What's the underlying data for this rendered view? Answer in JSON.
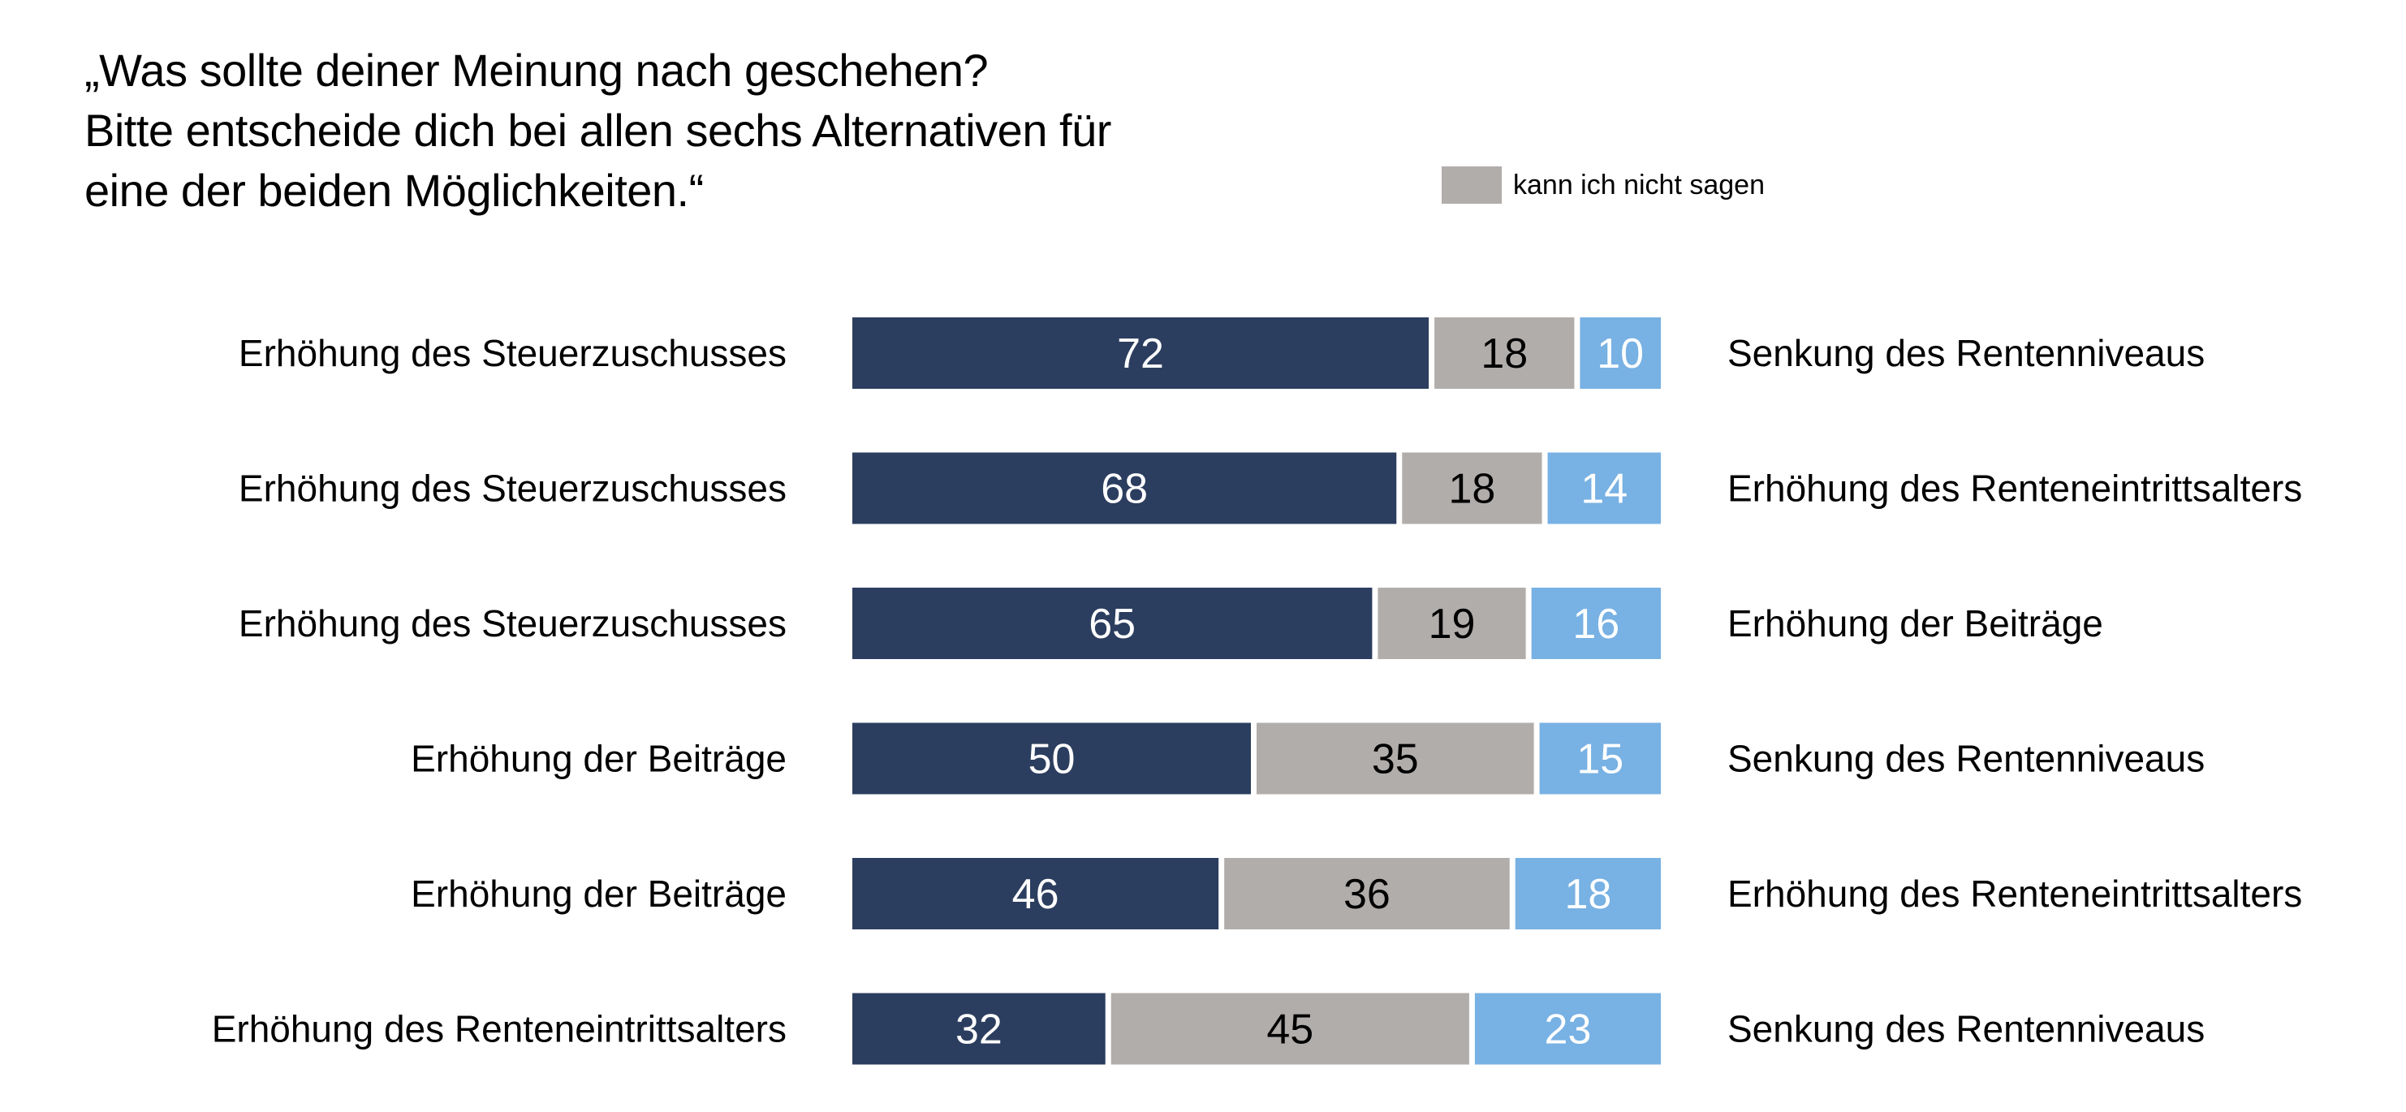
{
  "chart_data": {
    "type": "bar",
    "stacked": true,
    "orientation": "horizontal",
    "title_lines": [
      "„Was sollte deiner Meinung nach geschehen?",
      "Bitte entscheide dich bei allen sechs Alternativen für",
      "eine der beiden Möglichkeiten.“"
    ],
    "legend": [
      {
        "label": "kann ich nicht sagen",
        "color": "#b1adab"
      }
    ],
    "xlim": [
      0,
      100
    ],
    "rows": [
      {
        "left_label": "Erhöhung des Steuerzuschusses",
        "right_label": "Senkung des Rentenniveaus",
        "values": [
          72,
          18,
          10
        ]
      },
      {
        "left_label": "Erhöhung des Steuerzuschusses",
        "right_label": "Erhöhung des Renteneintrittsalters",
        "values": [
          68,
          18,
          14
        ]
      },
      {
        "left_label": "Erhöhung des Steuerzuschusses",
        "right_label": "Erhöhung der Beiträge",
        "values": [
          65,
          19,
          16
        ]
      },
      {
        "left_label": "Erhöhung der Beiträge",
        "right_label": "Senkung des Rentenniveaus",
        "values": [
          50,
          35,
          15
        ]
      },
      {
        "left_label": "Erhöhung der Beiträge",
        "right_label": "Erhöhung des Renteneintrittsalters",
        "values": [
          46,
          36,
          18
        ]
      },
      {
        "left_label": "Erhöhung des Renteneintrittsalters",
        "right_label": "Senkung des Rentenniveaus",
        "values": [
          32,
          45,
          23
        ]
      }
    ],
    "segment_colors": [
      "#2c3e5f",
      "#b1adab",
      "#78b1e3"
    ],
    "label_colors": [
      "#ffffff",
      "#000000",
      "#ffffff"
    ]
  }
}
